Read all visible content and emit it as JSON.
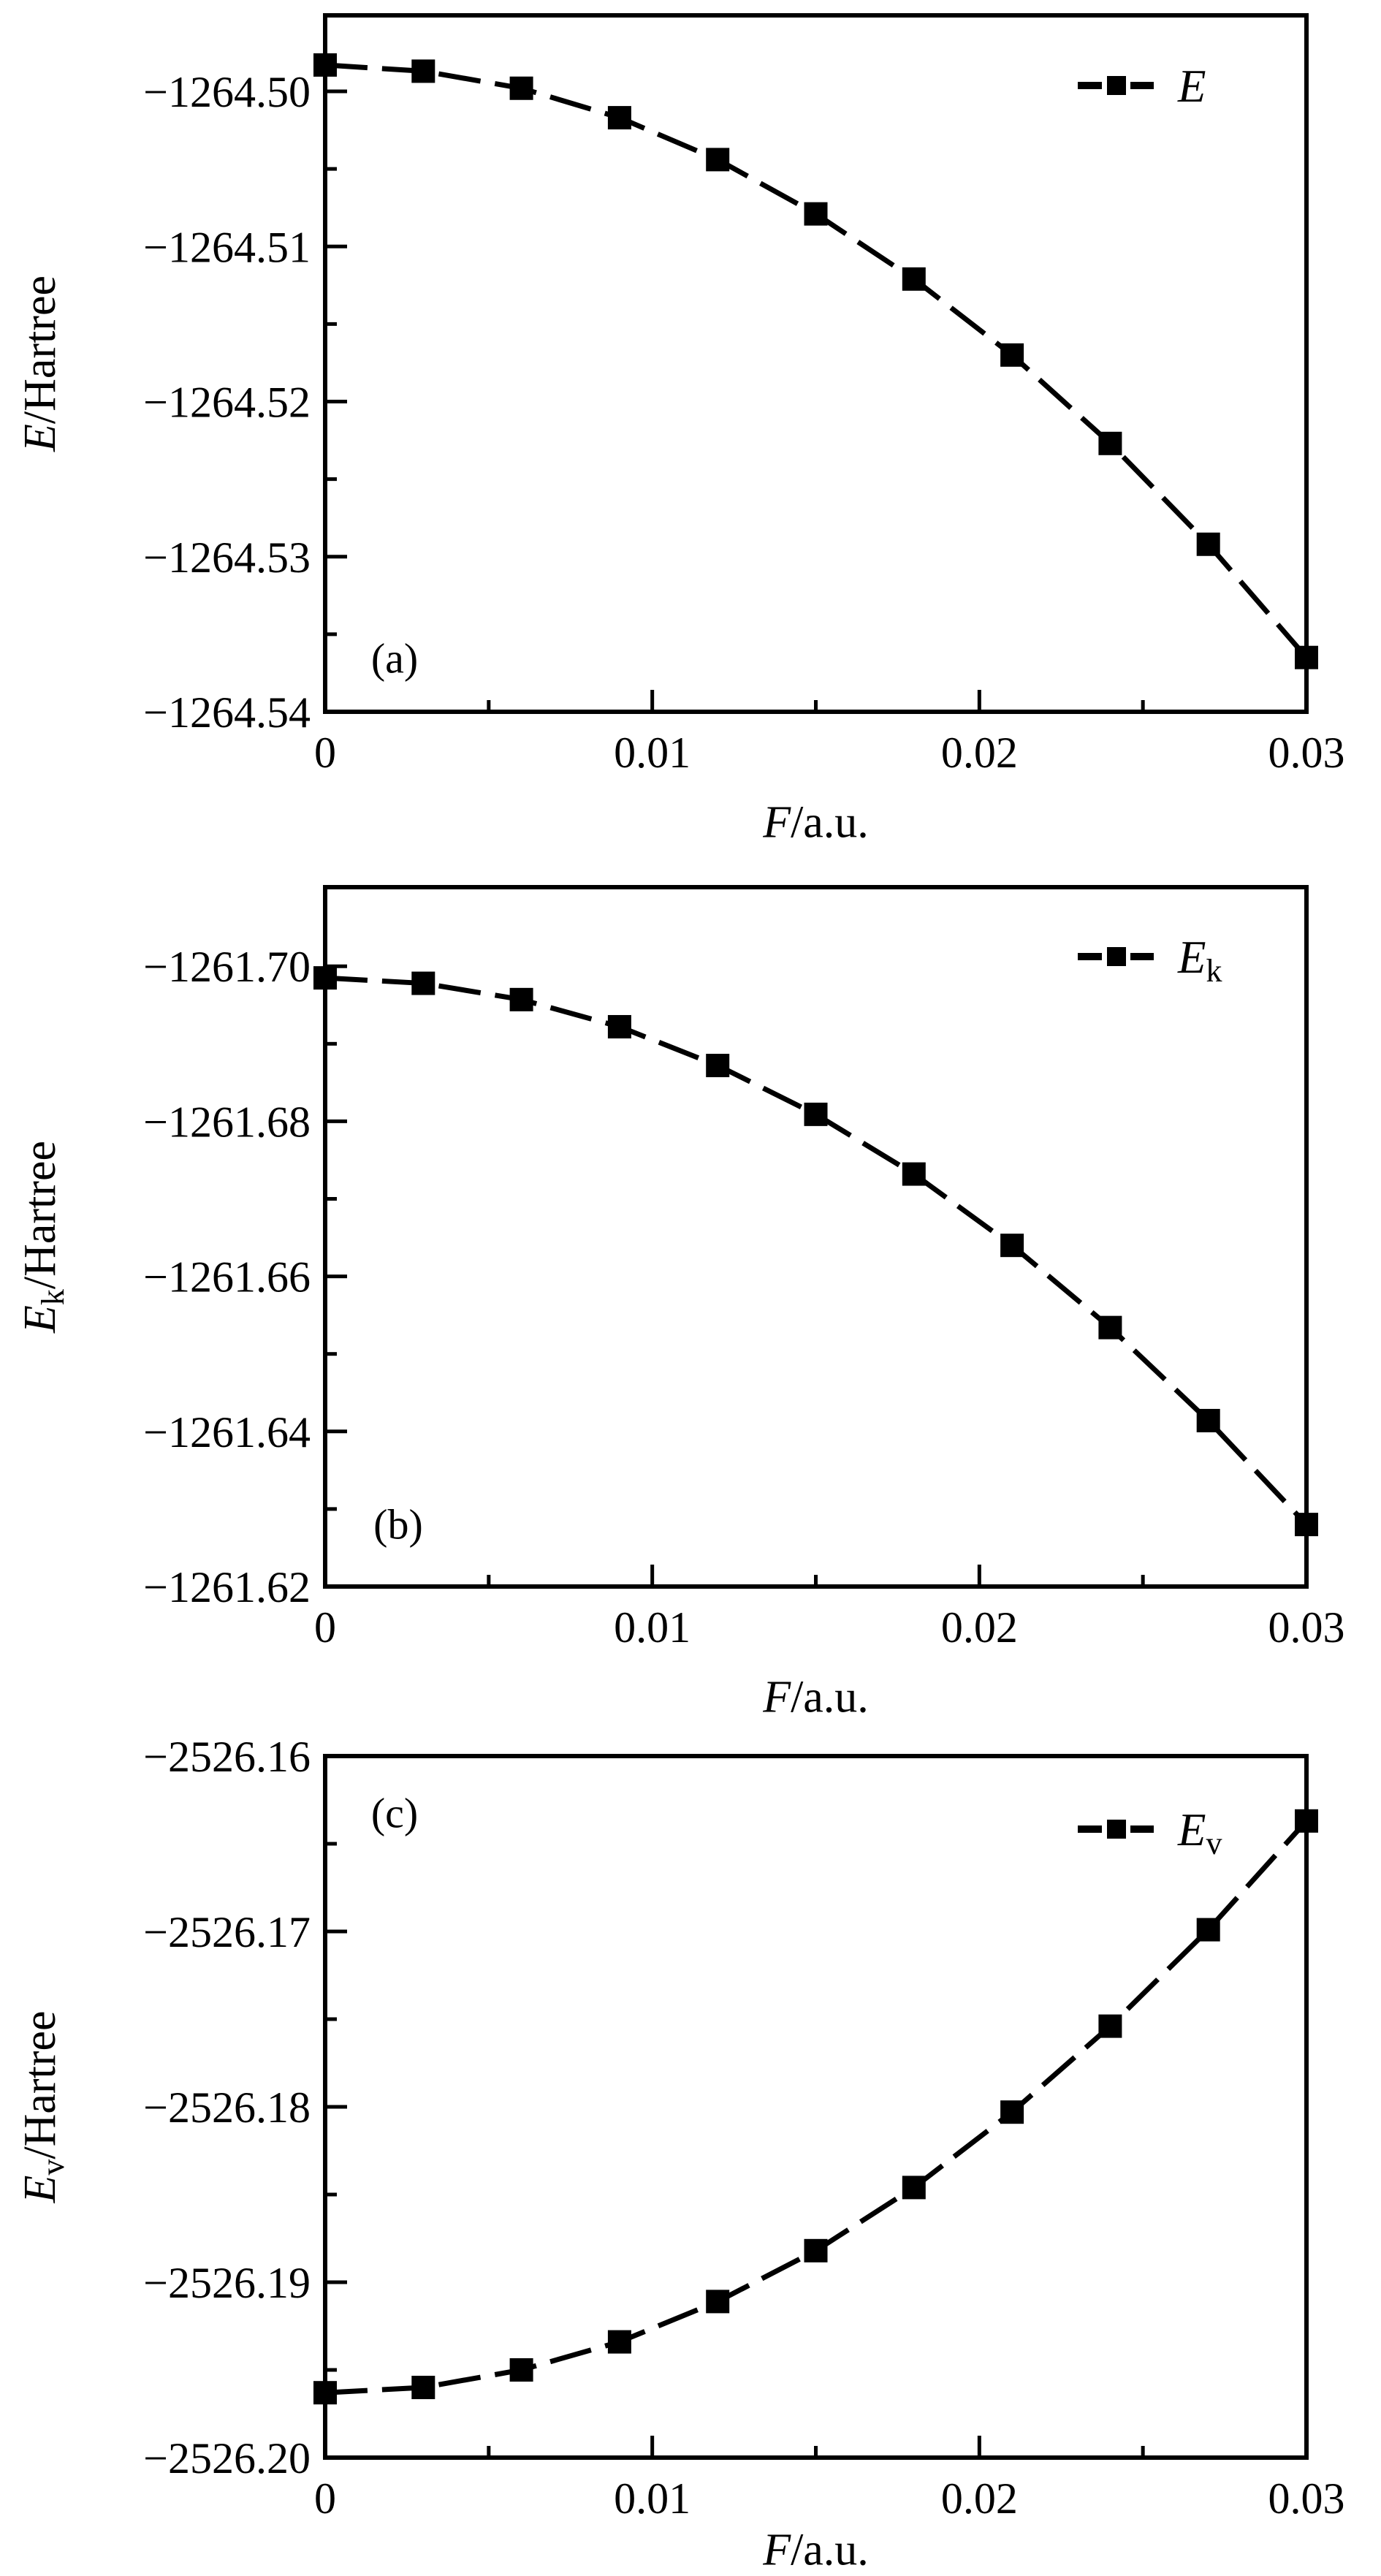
{
  "figure": {
    "background_color": "#ffffff",
    "ink_color": "#000000",
    "description": "Three stacked line panels: total energy E, kinetic-type energy Ek and potential-type energy Ev versus electric field strength F (a.u.)"
  },
  "chart_data": [
    {
      "id": "a",
      "type": "line",
      "panel_label": "(a)",
      "xlabel_main": "F",
      "xlabel_suffix": "/a.u.",
      "ylabel_main": "E",
      "ylabel_sub": "",
      "ylabel_suffix": "/Hartree",
      "legend": {
        "position": "top-right",
        "label_main": "E",
        "label_sub": "",
        "marker": "filled-square",
        "line_style": "dashed"
      },
      "grid": false,
      "marker": "square",
      "line_style": "dashed",
      "xlim": [
        0,
        0.03
      ],
      "ylim": [
        -1264.54,
        -1264.4951
      ],
      "y_top_value": -1264.4951,
      "y_bottom_value": -1264.54,
      "x": [
        0,
        0.003,
        0.006,
        0.009,
        0.012,
        0.015,
        0.018,
        0.021,
        0.024,
        0.027,
        0.03
      ],
      "values": [
        -1264.4983,
        -1264.4987,
        -1264.4998,
        -1264.5017,
        -1264.5044,
        -1264.5079,
        -1264.5121,
        -1264.517,
        -1264.5227,
        -1264.5292,
        -1264.5365
      ],
      "xticks": [
        {
          "v": 0,
          "label": "0"
        },
        {
          "v": 0.01,
          "label": "0.01"
        },
        {
          "v": 0.02,
          "label": "0.02"
        },
        {
          "v": 0.03,
          "label": "0.03"
        }
      ],
      "xticks_minor": [
        0.005,
        0.015,
        0.025
      ],
      "yticks": [
        {
          "v": -1264.5,
          "label": "−1264.50"
        },
        {
          "v": -1264.51,
          "label": "−1264.51"
        },
        {
          "v": -1264.52,
          "label": "−1264.52"
        },
        {
          "v": -1264.53,
          "label": "−1264.53"
        },
        {
          "v": -1264.54,
          "label": "−1264.54"
        }
      ],
      "yticks_minor": [
        -1264.505,
        -1264.515,
        -1264.525,
        -1264.535
      ]
    },
    {
      "id": "b",
      "type": "line",
      "panel_label": "(b)",
      "xlabel_main": "F",
      "xlabel_suffix": "/a.u.",
      "ylabel_main": "E",
      "ylabel_sub": "k",
      "ylabel_suffix": "/Hartree",
      "legend": {
        "position": "top-right",
        "label_main": "E",
        "label_sub": "k",
        "marker": "filled-square",
        "line_style": "dashed"
      },
      "grid": false,
      "marker": "square",
      "line_style": "dashed",
      "xlim": [
        0,
        0.03
      ],
      "ylim": [
        -1261.7102,
        -1261.62
      ],
      "y_axis_inverted": true,
      "y_top_value": -1261.7102,
      "y_bottom_value": -1261.62,
      "x": [
        0,
        0.003,
        0.006,
        0.009,
        0.012,
        0.015,
        0.018,
        0.021,
        0.024,
        0.027,
        0.03
      ],
      "values": [
        -1261.6985,
        -1261.6978,
        -1261.6957,
        -1261.6922,
        -1261.6872,
        -1261.6809,
        -1261.6732,
        -1261.664,
        -1261.6534,
        -1261.6414,
        -1261.628
      ],
      "xticks": [
        {
          "v": 0,
          "label": "0"
        },
        {
          "v": 0.01,
          "label": "0.01"
        },
        {
          "v": 0.02,
          "label": "0.02"
        },
        {
          "v": 0.03,
          "label": "0.03"
        }
      ],
      "xticks_minor": [
        0.005,
        0.015,
        0.025
      ],
      "yticks": [
        {
          "v": -1261.7,
          "label": "−1261.70"
        },
        {
          "v": -1261.68,
          "label": "−1261.68"
        },
        {
          "v": -1261.66,
          "label": "−1261.66"
        },
        {
          "v": -1261.64,
          "label": "−1261.64"
        },
        {
          "v": -1261.62,
          "label": "−1261.62"
        }
      ],
      "yticks_minor": [
        -1261.69,
        -1261.67,
        -1261.65,
        -1261.63
      ]
    },
    {
      "id": "c",
      "type": "line",
      "panel_label": "(c)",
      "xlabel_main": "F",
      "xlabel_suffix": "/a.u.",
      "ylabel_main": "E",
      "ylabel_sub": "v",
      "ylabel_suffix": "/Hartree",
      "legend": {
        "position": "top-right",
        "label_main": "E",
        "label_sub": "v",
        "marker": "filled-square",
        "line_style": "dashed"
      },
      "grid": false,
      "marker": "square",
      "line_style": "dashed",
      "xlim": [
        0,
        0.03
      ],
      "ylim": [
        -2526.2,
        -2526.16
      ],
      "y_top_value": -2526.16,
      "y_bottom_value": -2526.2,
      "x": [
        0,
        0.003,
        0.006,
        0.009,
        0.012,
        0.015,
        0.018,
        0.021,
        0.024,
        0.027,
        0.03
      ],
      "values": [
        -2526.1963,
        -2526.196,
        -2526.195,
        -2526.1934,
        -2526.1911,
        -2526.1882,
        -2526.1846,
        -2526.1803,
        -2526.1754,
        -2526.1699,
        -2526.1637
      ],
      "xticks": [
        {
          "v": 0,
          "label": "0"
        },
        {
          "v": 0.01,
          "label": "0.01"
        },
        {
          "v": 0.02,
          "label": "0.02"
        },
        {
          "v": 0.03,
          "label": "0.03"
        }
      ],
      "xticks_minor": [
        0.005,
        0.015,
        0.025
      ],
      "yticks": [
        {
          "v": -2526.16,
          "label": "−2526.16"
        },
        {
          "v": -2526.17,
          "label": "−2526.17"
        },
        {
          "v": -2526.18,
          "label": "−2526.18"
        },
        {
          "v": -2526.19,
          "label": "−2526.19"
        },
        {
          "v": -2526.2,
          "label": "−2526.20"
        }
      ],
      "yticks_minor": [
        -2526.165,
        -2526.175,
        -2526.185,
        -2526.195
      ]
    }
  ]
}
